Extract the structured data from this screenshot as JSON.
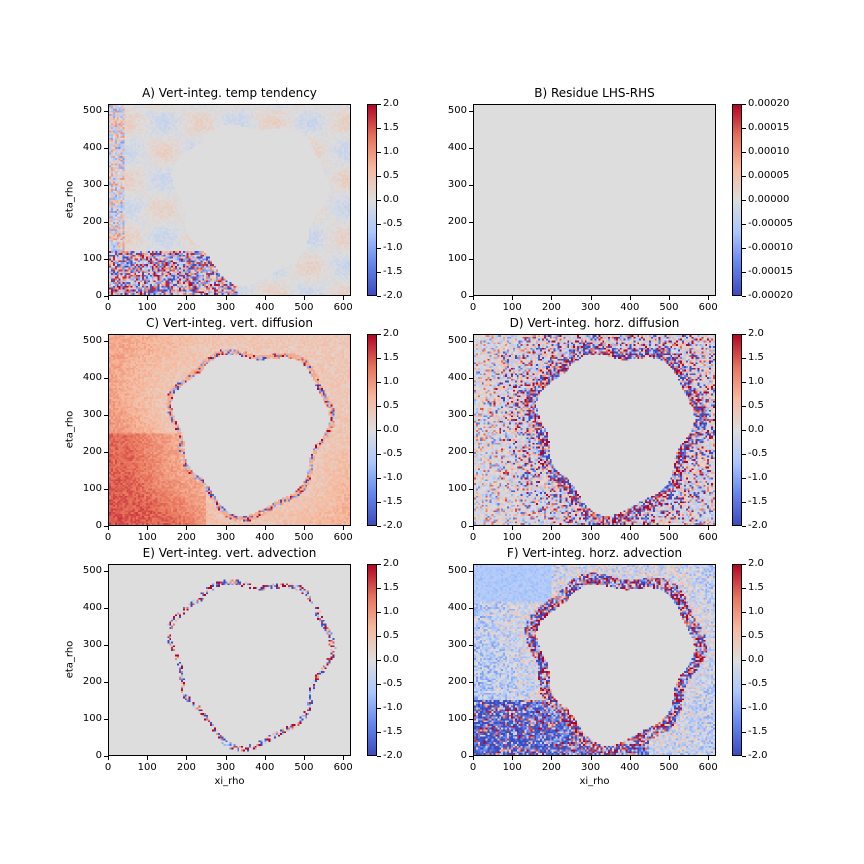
{
  "chart_data": {
    "type": "heatmap",
    "colormap": {
      "low": "#3b4cc0",
      "mid": "#dddddd",
      "high": "#b40426"
    },
    "panels": [
      {
        "id": "A",
        "title": "A) Vert-integ. temp tendency",
        "xlabel": "",
        "ylabel": "eta_rho",
        "xlim": [
          0,
          620
        ],
        "ylim": [
          0,
          520
        ],
        "xticks": [
          "0",
          "100",
          "200",
          "300",
          "400",
          "500",
          "600"
        ],
        "yticks": [
          "0",
          "100",
          "200",
          "300",
          "400",
          "500"
        ],
        "vmin": -2,
        "vmax": 2,
        "cbar_ticks": [
          "-2.0",
          "-1.5",
          "-1.0",
          "-0.5",
          "0.0",
          "0.5",
          "1.0",
          "1.5",
          "2.0"
        ]
      },
      {
        "id": "B",
        "title": "B) Residue LHS-RHS",
        "xlabel": "",
        "ylabel": "",
        "xlim": [
          0,
          620
        ],
        "ylim": [
          0,
          520
        ],
        "xticks": [
          "0",
          "100",
          "200",
          "300",
          "400",
          "500",
          "600"
        ],
        "yticks": [
          "0",
          "100",
          "200",
          "300",
          "400",
          "500"
        ],
        "vmin": -0.0002,
        "vmax": 0.0002,
        "cbar_ticks": [
          "-0.00020",
          "-0.00015",
          "-0.00010",
          "-0.00005",
          "0.00000",
          "0.00005",
          "0.00010",
          "0.00015",
          "0.00020"
        ]
      },
      {
        "id": "C",
        "title": "C) Vert-integ. vert. diffusion",
        "xlabel": "",
        "ylabel": "eta_rho",
        "xlim": [
          0,
          620
        ],
        "ylim": [
          0,
          520
        ],
        "xticks": [
          "0",
          "100",
          "200",
          "300",
          "400",
          "500",
          "600"
        ],
        "yticks": [
          "0",
          "100",
          "200",
          "300",
          "400",
          "500"
        ],
        "vmin": -2,
        "vmax": 2,
        "cbar_ticks": [
          "-2.0",
          "-1.5",
          "-1.0",
          "-0.5",
          "0.0",
          "0.5",
          "1.0",
          "1.5",
          "2.0"
        ]
      },
      {
        "id": "D",
        "title": "D) Vert-integ. horz. diffusion",
        "xlabel": "",
        "ylabel": "",
        "xlim": [
          0,
          620
        ],
        "ylim": [
          0,
          520
        ],
        "xticks": [
          "0",
          "100",
          "200",
          "300",
          "400",
          "500",
          "600"
        ],
        "yticks": [
          "0",
          "100",
          "200",
          "300",
          "400",
          "500"
        ],
        "vmin": -2,
        "vmax": 2,
        "cbar_ticks": [
          "-2.0",
          "-1.5",
          "-1.0",
          "-0.5",
          "0.0",
          "0.5",
          "1.0",
          "1.5",
          "2.0"
        ]
      },
      {
        "id": "E",
        "title": "E) Vert-integ. vert. advection",
        "xlabel": "xi_rho",
        "ylabel": "eta_rho",
        "xlim": [
          0,
          620
        ],
        "ylim": [
          0,
          520
        ],
        "xticks": [
          "0",
          "100",
          "200",
          "300",
          "400",
          "500",
          "600"
        ],
        "yticks": [
          "0",
          "100",
          "200",
          "300",
          "400",
          "500"
        ],
        "vmin": -2,
        "vmax": 2,
        "cbar_ticks": [
          "-2.0",
          "-1.5",
          "-1.0",
          "-0.5",
          "0.0",
          "0.5",
          "1.0",
          "1.5",
          "2.0"
        ]
      },
      {
        "id": "F",
        "title": "F) Vert-integ. horz. advection",
        "xlabel": "xi_rho",
        "ylabel": "",
        "xlim": [
          0,
          620
        ],
        "ylim": [
          0,
          520
        ],
        "xticks": [
          "0",
          "100",
          "200",
          "300",
          "400",
          "500",
          "600"
        ],
        "yticks": [
          "0",
          "100",
          "200",
          "300",
          "400",
          "500"
        ],
        "vmin": -2,
        "vmax": 2,
        "cbar_ticks": [
          "-2.0",
          "-1.5",
          "-1.0",
          "-0.5",
          "0.0",
          "0.5",
          "1.0",
          "1.5",
          "2.0"
        ]
      }
    ]
  }
}
